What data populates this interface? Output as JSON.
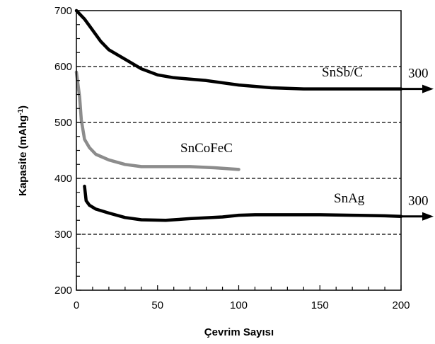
{
  "chart_data": {
    "type": "line",
    "title": "",
    "xlabel": "Çevrim Sayısı",
    "ylabel": "Kapasite (mAhg",
    "ylabel_sup": "-1",
    "ylabel_close": ")",
    "xlim": [
      0,
      200
    ],
    "ylim": [
      200,
      700
    ],
    "xticks": [
      0,
      50,
      100,
      150,
      200
    ],
    "yticks": [
      200,
      300,
      400,
      500,
      600,
      700
    ],
    "gridlines_y": [
      300,
      400,
      500,
      600
    ],
    "grid": "dashed horizontal at 300, 400, 500, 600",
    "series": [
      {
        "name": "SnSb/C",
        "color": "#000000",
        "arrow_label": "300",
        "points": [
          [
            0,
            700
          ],
          [
            5,
            685
          ],
          [
            10,
            665
          ],
          [
            15,
            645
          ],
          [
            20,
            630
          ],
          [
            30,
            613
          ],
          [
            40,
            596
          ],
          [
            50,
            585
          ],
          [
            60,
            580
          ],
          [
            80,
            575
          ],
          [
            100,
            567
          ],
          [
            120,
            562
          ],
          [
            140,
            560
          ],
          [
            160,
            560
          ],
          [
            180,
            560
          ],
          [
            200,
            560
          ]
        ]
      },
      {
        "name": "SnCoFeC",
        "color": "#8c8c8c",
        "points": [
          [
            0,
            590
          ],
          [
            2,
            545
          ],
          [
            3,
            505
          ],
          [
            5,
            470
          ],
          [
            8,
            455
          ],
          [
            12,
            443
          ],
          [
            20,
            433
          ],
          [
            30,
            425
          ],
          [
            40,
            421
          ],
          [
            55,
            421
          ],
          [
            70,
            421
          ],
          [
            85,
            419
          ],
          [
            100,
            416
          ]
        ]
      },
      {
        "name": "SnAg",
        "color": "#000000",
        "arrow_label": "300",
        "points": [
          [
            5,
            386
          ],
          [
            6,
            360
          ],
          [
            8,
            352
          ],
          [
            12,
            345
          ],
          [
            20,
            338
          ],
          [
            30,
            330
          ],
          [
            40,
            326
          ],
          [
            55,
            325
          ],
          [
            70,
            328
          ],
          [
            90,
            331
          ],
          [
            100,
            334
          ],
          [
            110,
            335
          ],
          [
            130,
            335
          ],
          [
            150,
            335
          ],
          [
            170,
            334
          ],
          [
            190,
            333
          ],
          [
            200,
            332
          ]
        ]
      }
    ]
  }
}
